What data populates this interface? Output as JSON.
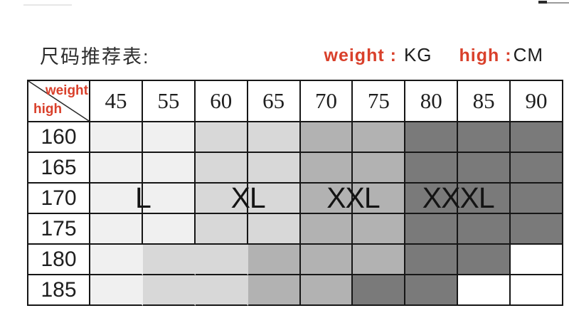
{
  "title": "尺码推荐表:",
  "units_legend": {
    "weight_label": "weight :",
    "weight_unit": "KG",
    "high_label": "high :",
    "high_unit": "CM"
  },
  "colors": {
    "accent_red": "#d9402b",
    "grid_line": "#161616",
    "size_L": "#f0f0f0",
    "size_XL": "#d8d8d8",
    "size_XXL": "#b2b2b2",
    "size_XXXL": "#7a7a7a",
    "empty": "#ffffff"
  },
  "table": {
    "corner": {
      "top_right_label": "weight",
      "bottom_left_label": "high"
    },
    "weight_columns": [
      "45",
      "55",
      "60",
      "65",
      "70",
      "75",
      "80",
      "85",
      "90"
    ],
    "height_rows": [
      "160",
      "165",
      "170",
      "175",
      "180",
      "185"
    ],
    "size_matrix": [
      [
        "L",
        "L",
        "XL",
        "XL",
        "XXL",
        "XXL",
        "XXXL",
        "XXXL",
        "XXXL"
      ],
      [
        "L",
        "L",
        "XL",
        "XL",
        "XXL",
        "XXL",
        "XXXL",
        "XXXL",
        "XXXL"
      ],
      [
        "L",
        "L",
        "XL",
        "XL",
        "XXL",
        "XXL",
        "XXXL",
        "XXXL",
        "XXXL"
      ],
      [
        "L",
        "L",
        "XL",
        "XL",
        "XXL",
        "XXL",
        "XXXL",
        "XXXL",
        "XXXL"
      ],
      [
        "L",
        "XL",
        "XL",
        "XXL",
        "XXL",
        "XXL",
        "XXXL",
        "XXXL",
        ""
      ],
      [
        "L",
        "XL",
        "XL",
        "XXL",
        "XXL",
        "XXXL",
        "XXXL",
        "",
        ""
      ]
    ],
    "overlay_labels": [
      {
        "text": "L",
        "boundary_index": 1
      },
      {
        "text": "XL",
        "boundary_index": 3
      },
      {
        "text": "XXL",
        "boundary_index": 5
      },
      {
        "text": "XXXL",
        "boundary_index": 7
      }
    ],
    "overlay_row": 2,
    "borderless_vertical_rows": [
      4,
      5
    ],
    "borderless_vertical_cols": [
      0,
      1,
      2
    ]
  },
  "chart_data": {
    "type": "heatmap",
    "title": "尺码推荐表:",
    "x": [
      45,
      55,
      60,
      65,
      70,
      75,
      80,
      85,
      90
    ],
    "xlabel": "weight (KG)",
    "y": [
      160,
      165,
      170,
      175,
      180,
      185
    ],
    "ylabel": "high (CM)",
    "legend": [
      "L",
      "XL",
      "XXL",
      "XXXL"
    ],
    "cells": [
      [
        "L",
        "L",
        "XL",
        "XL",
        "XXL",
        "XXL",
        "XXXL",
        "XXXL",
        "XXXL"
      ],
      [
        "L",
        "L",
        "XL",
        "XL",
        "XXL",
        "XXL",
        "XXXL",
        "XXXL",
        "XXXL"
      ],
      [
        "L",
        "L",
        "XL",
        "XL",
        "XXL",
        "XXL",
        "XXXL",
        "XXXL",
        "XXXL"
      ],
      [
        "L",
        "L",
        "XL",
        "XL",
        "XXL",
        "XXL",
        "XXXL",
        "XXXL",
        "XXXL"
      ],
      [
        "L",
        "XL",
        "XL",
        "XXL",
        "XXL",
        "XXL",
        "XXXL",
        "XXXL",
        null
      ],
      [
        "L",
        "XL",
        "XL",
        "XXL",
        "XXL",
        "XXXL",
        "XXXL",
        null,
        null
      ]
    ],
    "annotations_row_170": [
      "L",
      "XL",
      "XXL",
      "XXXL"
    ],
    "shade_legend": {
      "L": "#f0f0f0",
      "XL": "#d8d8d8",
      "XXL": "#b2b2b2",
      "XXXL": "#7a7a7a"
    }
  }
}
